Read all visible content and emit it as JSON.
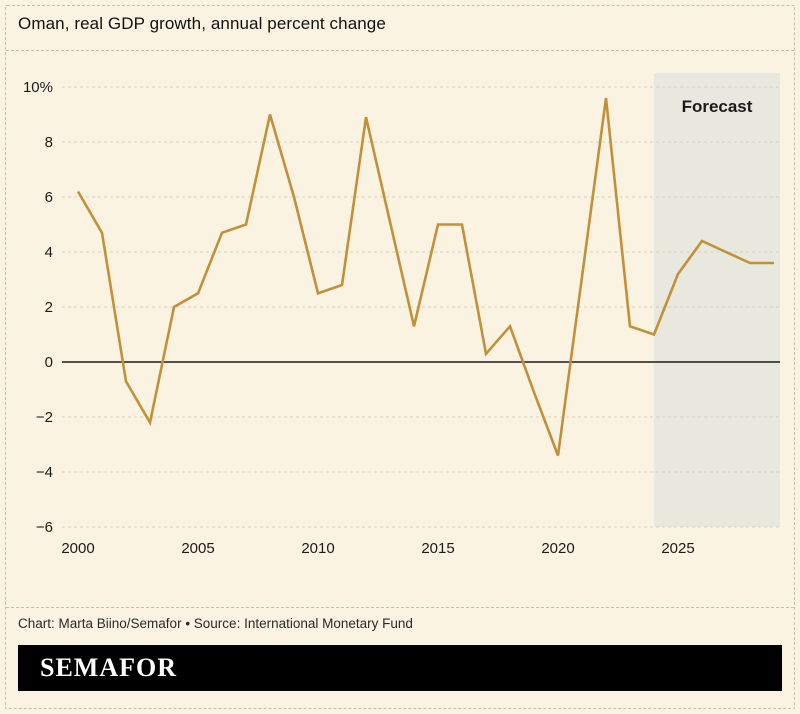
{
  "title": "Oman, real GDP growth, annual percent change",
  "credit": "Chart: Marta Biino/Semafor • Source: International Monetary Fund",
  "logo": "SEMAFOR",
  "colors": {
    "background": "#faf3e1",
    "line": "#c3903a",
    "grid": "#d8d1bc",
    "zero_line": "#1a1a1a",
    "forecast_bg": "#e9e8de",
    "text": "#1a1a1a"
  },
  "chart_data": {
    "type": "line",
    "title": "Oman, real GDP growth, annual percent change",
    "series_name": "Real GDP growth, annual percent change",
    "x": [
      2000,
      2001,
      2002,
      2003,
      2004,
      2005,
      2006,
      2007,
      2008,
      2009,
      2010,
      2011,
      2012,
      2013,
      2014,
      2015,
      2016,
      2017,
      2018,
      2019,
      2020,
      2021,
      2022,
      2023,
      2024,
      2025,
      2026,
      2027,
      2028,
      2029
    ],
    "values": [
      6.2,
      4.7,
      -0.7,
      -2.2,
      2.0,
      2.5,
      4.7,
      5.0,
      9.0,
      6.0,
      2.5,
      2.8,
      8.9,
      5.1,
      1.3,
      5.0,
      5.0,
      0.3,
      1.3,
      -1.1,
      -3.4,
      3.1,
      9.6,
      1.3,
      1.0,
      3.2,
      4.4,
      4.0,
      3.6,
      3.6
    ],
    "ylim": [
      -6,
      10
    ],
    "yticks": [
      10,
      8,
      6,
      4,
      2,
      0,
      -2,
      -4,
      -6
    ],
    "ytick_labels": [
      "10%",
      "8",
      "6",
      "4",
      "2",
      "0",
      "−2",
      "−4",
      "−6"
    ],
    "xticks": [
      2000,
      2005,
      2010,
      2015,
      2020,
      2025
    ],
    "forecast": {
      "start": 2024,
      "end": 2029,
      "label": "Forecast"
    },
    "grid": true,
    "legend": "none"
  }
}
